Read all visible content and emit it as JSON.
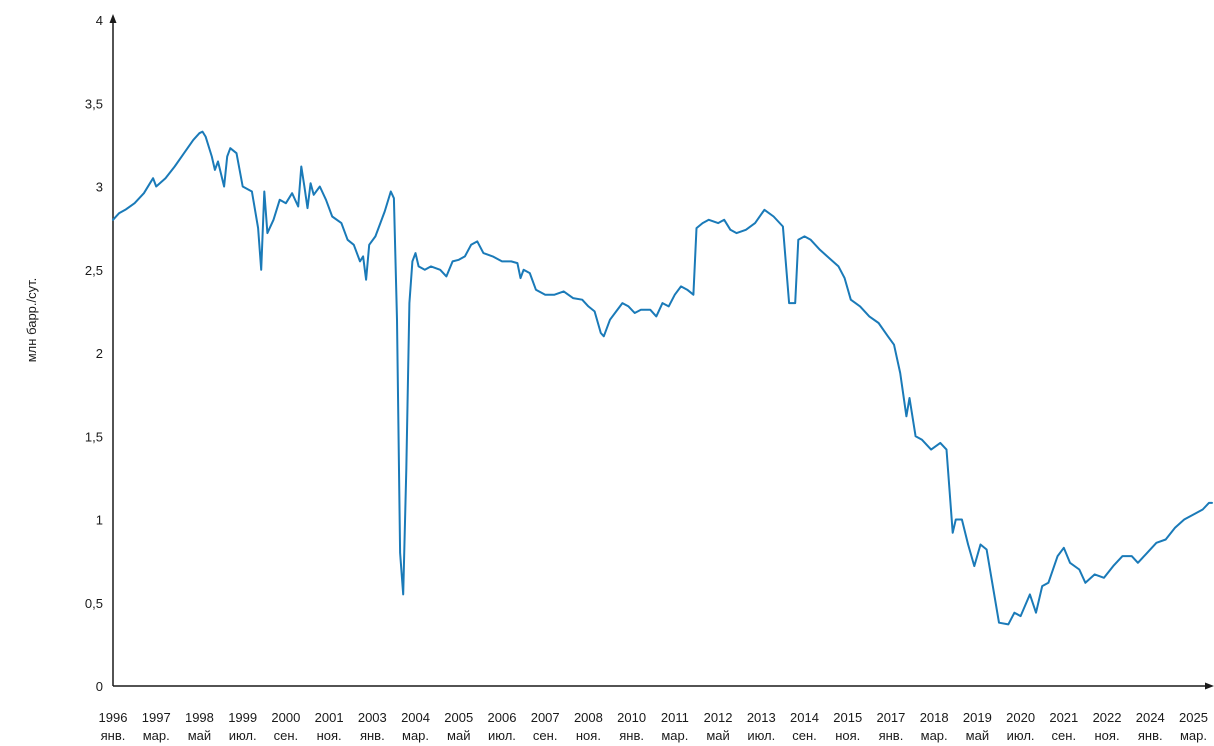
{
  "chart_data": {
    "type": "line",
    "ylabel": "млн барр./сут.",
    "ylim": [
      0,
      4
    ],
    "yticks": [
      {
        "v": 0,
        "label": "0"
      },
      {
        "v": 0.5,
        "label": "0,5"
      },
      {
        "v": 1,
        "label": "1"
      },
      {
        "v": 1.5,
        "label": "1,5"
      },
      {
        "v": 2,
        "label": "2"
      },
      {
        "v": 2.5,
        "label": "2,5"
      },
      {
        "v": 3,
        "label": "3"
      },
      {
        "v": 3.5,
        "label": "3,5"
      },
      {
        "v": 4,
        "label": "4"
      }
    ],
    "xticks": [
      {
        "date": "1996-01",
        "year": "1996",
        "month": "янв."
      },
      {
        "date": "1997-03",
        "year": "1997",
        "month": "мар."
      },
      {
        "date": "1998-05",
        "year": "1998",
        "month": "май"
      },
      {
        "date": "1999-07",
        "year": "1999",
        "month": "июл."
      },
      {
        "date": "2000-09",
        "year": "2000",
        "month": "сен."
      },
      {
        "date": "2001-11",
        "year": "2001",
        "month": "ноя."
      },
      {
        "date": "2003-01",
        "year": "2003",
        "month": "янв."
      },
      {
        "date": "2004-03",
        "year": "2004",
        "month": "мар."
      },
      {
        "date": "2005-05",
        "year": "2005",
        "month": "май"
      },
      {
        "date": "2006-07",
        "year": "2006",
        "month": "июл."
      },
      {
        "date": "2007-09",
        "year": "2007",
        "month": "сен."
      },
      {
        "date": "2008-11",
        "year": "2008",
        "month": "ноя."
      },
      {
        "date": "2010-01",
        "year": "2010",
        "month": "янв."
      },
      {
        "date": "2011-03",
        "year": "2011",
        "month": "мар."
      },
      {
        "date": "2012-05",
        "year": "2012",
        "month": "май"
      },
      {
        "date": "2013-07",
        "year": "2013",
        "month": "июл."
      },
      {
        "date": "2014-09",
        "year": "2014",
        "month": "сен."
      },
      {
        "date": "2015-11",
        "year": "2015",
        "month": "ноя."
      },
      {
        "date": "2017-01",
        "year": "2017",
        "month": "янв."
      },
      {
        "date": "2018-03",
        "year": "2018",
        "month": "мар."
      },
      {
        "date": "2019-05",
        "year": "2019",
        "month": "май"
      },
      {
        "date": "2020-07",
        "year": "2020",
        "month": "июл."
      },
      {
        "date": "2021-09",
        "year": "2021",
        "month": "сен."
      },
      {
        "date": "2022-11",
        "year": "2022",
        "month": "ноя."
      },
      {
        "date": "2024-01",
        "year": "2024",
        "month": "янв."
      },
      {
        "date": "2025-03",
        "year": "2025",
        "month": "мар."
      }
    ],
    "xlim": [
      "1996-01",
      "2025-09"
    ],
    "grid": false,
    "series": [
      {
        "color": "#1a7ab8",
        "points": [
          [
            "1996-01",
            2.8
          ],
          [
            "1996-03",
            2.84
          ],
          [
            "1996-05",
            2.86
          ],
          [
            "1996-08",
            2.9
          ],
          [
            "1996-11",
            2.96
          ],
          [
            "1997-01",
            3.02
          ],
          [
            "1997-02",
            3.05
          ],
          [
            "1997-03",
            3.0
          ],
          [
            "1997-06",
            3.05
          ],
          [
            "1997-09",
            3.12
          ],
          [
            "1997-12",
            3.2
          ],
          [
            "1998-03",
            3.28
          ],
          [
            "1998-05",
            3.32
          ],
          [
            "1998-06",
            3.33
          ],
          [
            "1998-07",
            3.3
          ],
          [
            "1998-09",
            3.18
          ],
          [
            "1998-10",
            3.1
          ],
          [
            "1998-11",
            3.15
          ],
          [
            "1999-01",
            3.0
          ],
          [
            "1999-02",
            3.18
          ],
          [
            "1999-03",
            3.23
          ],
          [
            "1999-05",
            3.2
          ],
          [
            "1999-07",
            3.0
          ],
          [
            "1999-10",
            2.97
          ],
          [
            "1999-12",
            2.75
          ],
          [
            "2000-01",
            2.5
          ],
          [
            "2000-02",
            2.97
          ],
          [
            "2000-03",
            2.72
          ],
          [
            "2000-05",
            2.8
          ],
          [
            "2000-07",
            2.92
          ],
          [
            "2000-09",
            2.9
          ],
          [
            "2000-11",
            2.96
          ],
          [
            "2001-01",
            2.88
          ],
          [
            "2001-02",
            3.12
          ],
          [
            "2001-03",
            3.0
          ],
          [
            "2001-04",
            2.87
          ],
          [
            "2001-05",
            3.02
          ],
          [
            "2001-06",
            2.95
          ],
          [
            "2001-08",
            3.0
          ],
          [
            "2001-10",
            2.92
          ],
          [
            "2001-12",
            2.82
          ],
          [
            "2002-03",
            2.78
          ],
          [
            "2002-05",
            2.68
          ],
          [
            "2002-07",
            2.65
          ],
          [
            "2002-09",
            2.55
          ],
          [
            "2002-10",
            2.58
          ],
          [
            "2002-11",
            2.44
          ],
          [
            "2002-12",
            2.65
          ],
          [
            "2003-02",
            2.7
          ],
          [
            "2003-05",
            2.85
          ],
          [
            "2003-07",
            2.97
          ],
          [
            "2003-08",
            2.93
          ],
          [
            "2003-09",
            2.2
          ],
          [
            "2003-10",
            0.8
          ],
          [
            "2003-11",
            0.55
          ],
          [
            "2003-12",
            1.3
          ],
          [
            "2004-01",
            2.3
          ],
          [
            "2004-02",
            2.55
          ],
          [
            "2004-03",
            2.6
          ],
          [
            "2004-04",
            2.52
          ],
          [
            "2004-06",
            2.5
          ],
          [
            "2004-08",
            2.52
          ],
          [
            "2004-11",
            2.5
          ],
          [
            "2005-01",
            2.46
          ],
          [
            "2005-03",
            2.55
          ],
          [
            "2005-05",
            2.56
          ],
          [
            "2005-07",
            2.58
          ],
          [
            "2005-09",
            2.65
          ],
          [
            "2005-11",
            2.67
          ],
          [
            "2006-01",
            2.6
          ],
          [
            "2006-04",
            2.58
          ],
          [
            "2006-07",
            2.55
          ],
          [
            "2006-10",
            2.55
          ],
          [
            "2006-12",
            2.54
          ],
          [
            "2007-01",
            2.45
          ],
          [
            "2007-02",
            2.5
          ],
          [
            "2007-04",
            2.48
          ],
          [
            "2007-06",
            2.38
          ],
          [
            "2007-09",
            2.35
          ],
          [
            "2007-12",
            2.35
          ],
          [
            "2008-03",
            2.37
          ],
          [
            "2008-06",
            2.33
          ],
          [
            "2008-09",
            2.32
          ],
          [
            "2008-11",
            2.28
          ],
          [
            "2009-01",
            2.25
          ],
          [
            "2009-03",
            2.12
          ],
          [
            "2009-04",
            2.1
          ],
          [
            "2009-06",
            2.2
          ],
          [
            "2009-08",
            2.25
          ],
          [
            "2009-10",
            2.3
          ],
          [
            "2009-12",
            2.28
          ],
          [
            "2010-02",
            2.24
          ],
          [
            "2010-04",
            2.26
          ],
          [
            "2010-07",
            2.26
          ],
          [
            "2010-09",
            2.22
          ],
          [
            "2010-11",
            2.3
          ],
          [
            "2011-01",
            2.28
          ],
          [
            "2011-03",
            2.35
          ],
          [
            "2011-05",
            2.4
          ],
          [
            "2011-07",
            2.38
          ],
          [
            "2011-09",
            2.35
          ],
          [
            "2011-10",
            2.75
          ],
          [
            "2011-12",
            2.78
          ],
          [
            "2012-02",
            2.8
          ],
          [
            "2012-05",
            2.78
          ],
          [
            "2012-07",
            2.8
          ],
          [
            "2012-09",
            2.74
          ],
          [
            "2012-11",
            2.72
          ],
          [
            "2013-02",
            2.74
          ],
          [
            "2013-05",
            2.78
          ],
          [
            "2013-08",
            2.86
          ],
          [
            "2013-11",
            2.82
          ],
          [
            "2014-02",
            2.76
          ],
          [
            "2014-04",
            2.3
          ],
          [
            "2014-06",
            2.3
          ],
          [
            "2014-07",
            2.68
          ],
          [
            "2014-09",
            2.7
          ],
          [
            "2014-11",
            2.68
          ],
          [
            "2015-02",
            2.62
          ],
          [
            "2015-05",
            2.57
          ],
          [
            "2015-08",
            2.52
          ],
          [
            "2015-10",
            2.45
          ],
          [
            "2015-12",
            2.32
          ],
          [
            "2016-03",
            2.28
          ],
          [
            "2016-06",
            2.22
          ],
          [
            "2016-09",
            2.18
          ],
          [
            "2016-12",
            2.1
          ],
          [
            "2017-02",
            2.05
          ],
          [
            "2017-04",
            1.88
          ],
          [
            "2017-06",
            1.62
          ],
          [
            "2017-07",
            1.73
          ],
          [
            "2017-09",
            1.5
          ],
          [
            "2017-11",
            1.48
          ],
          [
            "2018-02",
            1.42
          ],
          [
            "2018-05",
            1.46
          ],
          [
            "2018-07",
            1.42
          ],
          [
            "2018-09",
            0.92
          ],
          [
            "2018-10",
            1.0
          ],
          [
            "2018-12",
            1.0
          ],
          [
            "2019-02",
            0.85
          ],
          [
            "2019-04",
            0.72
          ],
          [
            "2019-06",
            0.85
          ],
          [
            "2019-08",
            0.82
          ],
          [
            "2019-10",
            0.6
          ],
          [
            "2019-12",
            0.38
          ],
          [
            "2020-03",
            0.37
          ],
          [
            "2020-05",
            0.44
          ],
          [
            "2020-07",
            0.42
          ],
          [
            "2020-10",
            0.55
          ],
          [
            "2020-12",
            0.44
          ],
          [
            "2021-02",
            0.6
          ],
          [
            "2021-04",
            0.62
          ],
          [
            "2021-07",
            0.78
          ],
          [
            "2021-09",
            0.83
          ],
          [
            "2021-11",
            0.74
          ],
          [
            "2022-02",
            0.7
          ],
          [
            "2022-04",
            0.62
          ],
          [
            "2022-07",
            0.67
          ],
          [
            "2022-10",
            0.65
          ],
          [
            "2023-01",
            0.72
          ],
          [
            "2023-04",
            0.78
          ],
          [
            "2023-07",
            0.78
          ],
          [
            "2023-09",
            0.74
          ],
          [
            "2023-12",
            0.8
          ],
          [
            "2024-03",
            0.86
          ],
          [
            "2024-06",
            0.88
          ],
          [
            "2024-09",
            0.95
          ],
          [
            "2024-12",
            1.0
          ],
          [
            "2025-03",
            1.03
          ],
          [
            "2025-06",
            1.06
          ],
          [
            "2025-08",
            1.1
          ],
          [
            "2025-09",
            1.1
          ]
        ]
      }
    ]
  }
}
